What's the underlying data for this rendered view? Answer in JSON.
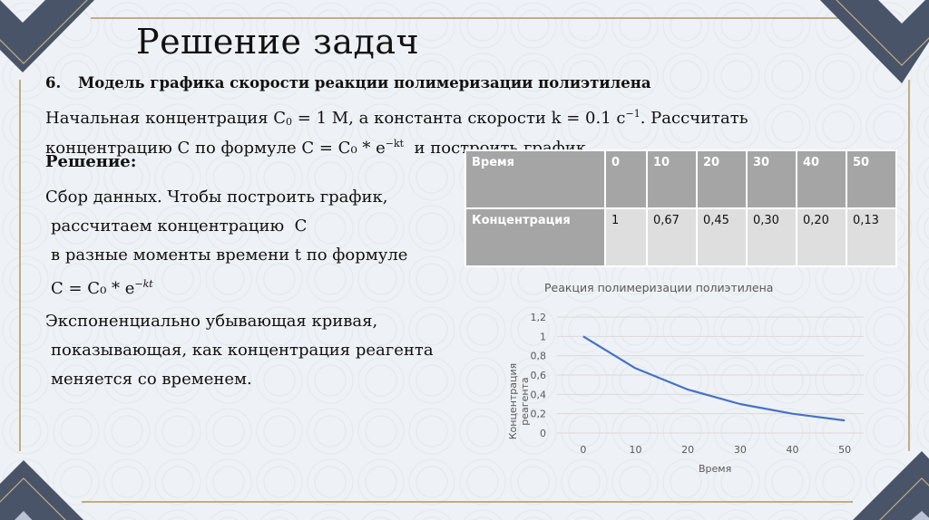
{
  "slide": {
    "title": "Решение задач",
    "task_number": "6.",
    "task_heading": "Модель графика скорости реакции полимеризации полиэтилена",
    "problem": {
      "line1_a": "Начальная концентрация C",
      "line1_sub": "0",
      "line1_b": " = 1 М, а константа скорости k = 0.1 с",
      "line1_sup": "−1",
      "line1_c": ". Рассчитать",
      "line2_a": "концентрацию C по формуле C = C₀ * e",
      "line2_sup": "−kt",
      "line2_b": "  и построить график."
    },
    "solution_label": "Решение:",
    "solution_lines": [
      "Сбор данных. Чтобы построить график,",
      "рассчитаем концентрацию  C",
      "в разные моменты времени t по формуле"
    ],
    "formula": {
      "base": "C = C₀ * e",
      "exp": "−kt"
    },
    "conclusion_lines": [
      "Экспоненциально убывающая кривая,",
      "показывающая, как концентрация реагента",
      "меняется со временем."
    ],
    "colors": {
      "frame_dark": "#4a5468",
      "frame_gold": "#bfae84",
      "table_header": "#a5a5a5",
      "table_cell": "#dedede",
      "line": "#4472c4"
    }
  },
  "table": {
    "row_headers": [
      "Время",
      "Концентрация"
    ],
    "time": [
      "0",
      "10",
      "20",
      "30",
      "40",
      "50"
    ],
    "concentration": [
      "1",
      "0,67",
      "0,45",
      "0,30",
      "0,20",
      "0,13"
    ]
  },
  "chart_data": {
    "type": "line",
    "title": "Реакция полимеризации полиэтилена",
    "xlabel": "Время",
    "ylabel": "Концентрация реагента",
    "x": [
      0,
      10,
      20,
      30,
      40,
      50
    ],
    "categories": [
      "0",
      "10",
      "20",
      "30",
      "40",
      "50"
    ],
    "series": [
      {
        "name": "Концентрация",
        "values": [
          1,
          0.67,
          0.45,
          0.3,
          0.2,
          0.13
        ]
      }
    ],
    "ylim": [
      0,
      1.2
    ],
    "yticks": [
      "0",
      "0,2",
      "0,4",
      "0,6",
      "0,8",
      "1",
      "1,2"
    ],
    "grid": true,
    "legend": "none"
  }
}
